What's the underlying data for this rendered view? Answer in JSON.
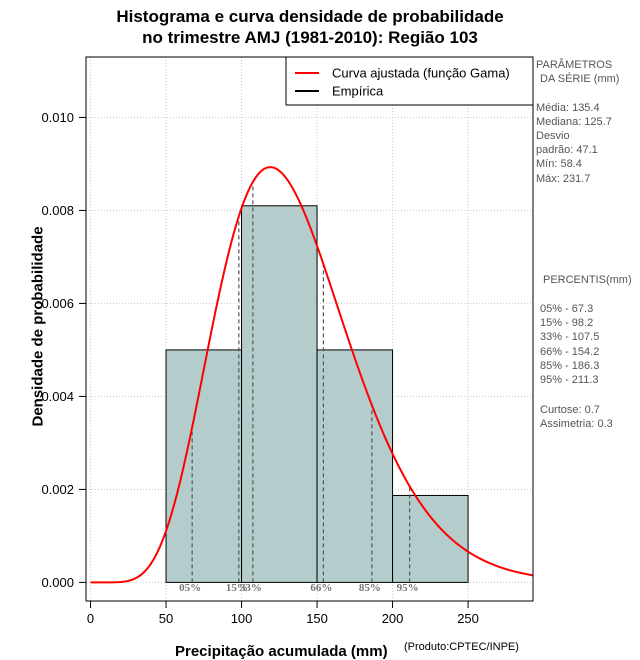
{
  "title": {
    "line1": "Histograma e curva densidade de probabilidade",
    "line2": "no trimestre AMJ (1981-2010): Região 103"
  },
  "axes": {
    "xlabel": "Precipitação acumulada (mm)",
    "ylabel": "Densidade de probabilidade",
    "product": "(Produto:CPTEC/INPE)"
  },
  "chart_data": {
    "type": "bar",
    "title": "Histograma e curva densidade de probabilidade no trimestre AMJ (1981-2010): Região 103",
    "xlabel": "Precipitação acumulada (mm)",
    "ylabel": "Densidade de probabilidade",
    "xlim": [
      -3,
      293
    ],
    "ylim": [
      -0.0004,
      0.0113
    ],
    "x_ticks": [
      0,
      50,
      100,
      150,
      200,
      250
    ],
    "y_ticks": [
      0.0,
      0.002,
      0.004,
      0.006,
      0.008,
      0.01
    ],
    "y_tick_labels": [
      "0.000",
      "0.002",
      "0.004",
      "0.006",
      "0.008",
      "0.010"
    ],
    "grid": true,
    "bins": [
      {
        "start": 50,
        "end": 100,
        "density": 0.005
      },
      {
        "start": 100,
        "end": 150,
        "density": 0.0081
      },
      {
        "start": 150,
        "end": 200,
        "density": 0.005
      },
      {
        "start": 200,
        "end": 250,
        "density": 0.00187
      }
    ],
    "gamma_fit": {
      "mean": 135.4,
      "sd": 47.1,
      "color": "#ff0000"
    },
    "percentiles": [
      {
        "label": "05%",
        "value": 67.3
      },
      {
        "label": "15%",
        "value": 98.2
      },
      {
        "label": "33%",
        "value": 107.5
      },
      {
        "label": "66%",
        "value": 154.2
      },
      {
        "label": "85%",
        "value": 186.3
      },
      {
        "label": "95%",
        "value": 211.3
      }
    ],
    "legend": {
      "position": "top-right",
      "entries": [
        {
          "label": "Curva ajustada (função Gama)",
          "color": "#ff0000"
        },
        {
          "label": "Empírica",
          "color": "#000000"
        }
      ]
    },
    "bar_color": "#b4cccc"
  },
  "side_panel": {
    "params_title_1": "PARÂMETROS",
    "params_title_2": "DA SÉRIE (mm)",
    "media": "Média:  135.4",
    "mediana": "Mediana:  125.7",
    "desvio_1": "Desvio",
    "desvio_2": "padrão:  47.1",
    "min": "Mín:  58.4",
    "max": "Máx:  231.7",
    "percentis_title": "PERCENTIS(mm)",
    "p05": "05% -   67.3",
    "p15": "15% -   98.2",
    "p33": "33% -   107.5",
    "p66": "66% -   154.2",
    "p85": "85% -   186.3",
    "p95": "95% -   211.3",
    "curtose": "Curtose:  0.7",
    "assimetria": "Assimetria:  0.3"
  }
}
